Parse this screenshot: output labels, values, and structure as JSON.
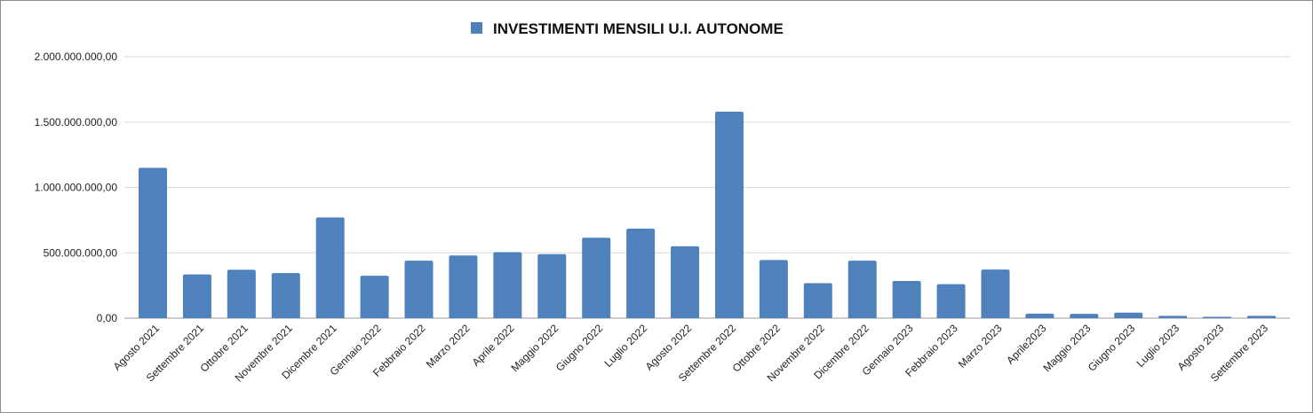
{
  "chart_data": {
    "type": "bar",
    "title": "INVESTIMENTI MENSILI  U.I. AUTONOME",
    "legend_position": "top",
    "grid": true,
    "bar_color": "#4f81bd",
    "ylim": [
      0,
      2000000000
    ],
    "yticks": [
      {
        "value": 0,
        "label": "0,00"
      },
      {
        "value": 500000000,
        "label": "500.000.000,00"
      },
      {
        "value": 1000000000,
        "label": "1.000.000.000,00"
      },
      {
        "value": 1500000000,
        "label": "1.500.000.000,00"
      },
      {
        "value": 2000000000,
        "label": "2.000.000.000,00"
      }
    ],
    "categories": [
      "Agosto 2021",
      "Settembre 2021",
      "Ottobre 2021",
      "Novembre 2021",
      "Dicembre 2021",
      "Gennaio 2022",
      "Febbraio 2022",
      "Marzo 2022",
      "Aprile 2022",
      "Maggio 2022",
      "Giugno 2022",
      "Luglio 2022",
      "Agosto 2022",
      "Settembre 2022",
      "Ottobre 2022",
      "Novembre 2022",
      "Dicembre 2022",
      "Gennaio 2023",
      "Febbraio 2023",
      "Marzo 2023",
      "Aprile2023",
      "Maggio 2023",
      "Giugno 2023",
      "Luglio 2023",
      "Agosto 2023",
      "Settembre 2023"
    ],
    "series": [
      {
        "name": "INVESTIMENTI MENSILI  U.I. AUTONOME",
        "values": [
          1150000000,
          335000000,
          370000000,
          345000000,
          770000000,
          325000000,
          440000000,
          480000000,
          505000000,
          490000000,
          615000000,
          685000000,
          550000000,
          1580000000,
          445000000,
          268000000,
          440000000,
          285000000,
          260000000,
          372000000,
          35000000,
          33000000,
          42000000,
          18000000,
          10000000,
          18000000
        ]
      }
    ]
  }
}
